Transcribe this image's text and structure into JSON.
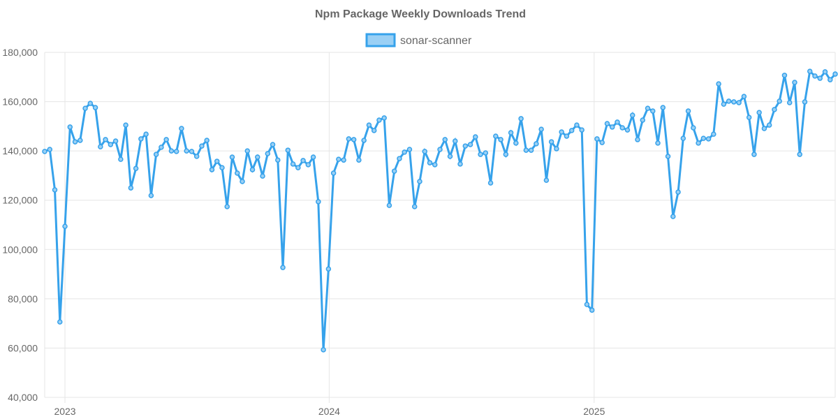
{
  "chart_data": {
    "type": "line",
    "title": "Npm Package Weekly Downloads Trend",
    "xlabel": "",
    "ylabel": "",
    "ylim": [
      40000,
      180000
    ],
    "yticks": [
      "40,000",
      "60,000",
      "80,000",
      "100,000",
      "120,000",
      "140,000",
      "160,000",
      "180,000"
    ],
    "xticks": [
      "2023",
      "2024",
      "2025"
    ],
    "grid": true,
    "legend_position": "top",
    "colors": {
      "line": "#36a2eb",
      "fill": "#9ad0f5"
    },
    "series": [
      {
        "name": "sonar-scanner",
        "points": [
          [
            "2022-12-04",
            139800
          ],
          [
            "2022-12-11",
            140600
          ],
          [
            "2022-12-18",
            124200
          ],
          [
            "2022-12-25",
            70600
          ],
          [
            "2023-01-01",
            109400
          ],
          [
            "2023-01-08",
            149700
          ],
          [
            "2023-01-15",
            143700
          ],
          [
            "2023-01-22",
            144300
          ],
          [
            "2023-01-29",
            157300
          ],
          [
            "2023-02-05",
            159300
          ],
          [
            "2023-02-12",
            157600
          ],
          [
            "2023-02-19",
            141700
          ],
          [
            "2023-02-26",
            144600
          ],
          [
            "2023-03-05",
            142600
          ],
          [
            "2023-03-12",
            144000
          ],
          [
            "2023-03-19",
            136600
          ],
          [
            "2023-03-26",
            150500
          ],
          [
            "2023-04-02",
            125000
          ],
          [
            "2023-04-09",
            132900
          ],
          [
            "2023-04-16",
            144900
          ],
          [
            "2023-04-23",
            146800
          ],
          [
            "2023-04-30",
            121900
          ],
          [
            "2023-05-07",
            138600
          ],
          [
            "2023-05-14",
            141500
          ],
          [
            "2023-05-21",
            144600
          ],
          [
            "2023-05-28",
            140000
          ],
          [
            "2023-06-04",
            139800
          ],
          [
            "2023-06-11",
            149100
          ],
          [
            "2023-06-18",
            140000
          ],
          [
            "2023-06-25",
            139800
          ],
          [
            "2023-07-02",
            137800
          ],
          [
            "2023-07-09",
            142000
          ],
          [
            "2023-07-16",
            144300
          ],
          [
            "2023-07-23",
            132400
          ],
          [
            "2023-07-30",
            135800
          ],
          [
            "2023-08-06",
            133200
          ],
          [
            "2023-08-13",
            117400
          ],
          [
            "2023-08-20",
            137500
          ],
          [
            "2023-08-27",
            131000
          ],
          [
            "2023-09-03",
            127600
          ],
          [
            "2023-09-10",
            140000
          ],
          [
            "2023-09-17",
            132400
          ],
          [
            "2023-09-24",
            137500
          ],
          [
            "2023-10-01",
            129800
          ],
          [
            "2023-10-08",
            138900
          ],
          [
            "2023-10-15",
            142600
          ],
          [
            "2023-10-22",
            136300
          ],
          [
            "2023-10-29",
            92700
          ],
          [
            "2023-11-05",
            140300
          ],
          [
            "2023-11-12",
            134700
          ],
          [
            "2023-11-19",
            133200
          ],
          [
            "2023-11-26",
            136100
          ],
          [
            "2023-12-03",
            134400
          ],
          [
            "2023-12-10",
            137500
          ],
          [
            "2023-12-17",
            119400
          ],
          [
            "2023-12-24",
            59300
          ],
          [
            "2023-12-31",
            92100
          ],
          [
            "2024-01-07",
            131000
          ],
          [
            "2024-01-14",
            136600
          ],
          [
            "2024-01-21",
            136300
          ],
          [
            "2024-01-28",
            144900
          ],
          [
            "2024-02-04",
            144600
          ],
          [
            "2024-02-11",
            136300
          ],
          [
            "2024-02-18",
            144300
          ],
          [
            "2024-02-25",
            150500
          ],
          [
            "2024-03-03",
            148300
          ],
          [
            "2024-03-10",
            152500
          ],
          [
            "2024-03-17",
            153400
          ],
          [
            "2024-03-24",
            117900
          ],
          [
            "2024-03-31",
            131800
          ],
          [
            "2024-04-07",
            136900
          ],
          [
            "2024-04-14",
            139500
          ],
          [
            "2024-04-21",
            140600
          ],
          [
            "2024-04-28",
            117400
          ],
          [
            "2024-05-05",
            127600
          ],
          [
            "2024-05-12",
            139800
          ],
          [
            "2024-05-19",
            135200
          ],
          [
            "2024-05-26",
            134400
          ],
          [
            "2024-06-02",
            140600
          ],
          [
            "2024-06-09",
            144600
          ],
          [
            "2024-06-16",
            137800
          ],
          [
            "2024-06-23",
            144000
          ],
          [
            "2024-06-30",
            134700
          ],
          [
            "2024-07-07",
            142000
          ],
          [
            "2024-07-14",
            142600
          ],
          [
            "2024-07-21",
            145700
          ],
          [
            "2024-07-28",
            138600
          ],
          [
            "2024-08-04",
            139200
          ],
          [
            "2024-08-11",
            127000
          ],
          [
            "2024-08-18",
            146000
          ],
          [
            "2024-08-25",
            144600
          ],
          [
            "2024-09-01",
            138600
          ],
          [
            "2024-09-08",
            147400
          ],
          [
            "2024-09-15",
            143200
          ],
          [
            "2024-09-22",
            153100
          ],
          [
            "2024-09-29",
            140300
          ],
          [
            "2024-10-06",
            140300
          ],
          [
            "2024-10-13",
            142900
          ],
          [
            "2024-10-20",
            148800
          ],
          [
            "2024-10-27",
            128100
          ],
          [
            "2024-11-03",
            143700
          ],
          [
            "2024-11-10",
            140900
          ],
          [
            "2024-11-17",
            147700
          ],
          [
            "2024-11-24",
            146000
          ],
          [
            "2024-12-01",
            148300
          ],
          [
            "2024-12-08",
            150500
          ],
          [
            "2024-12-15",
            148500
          ],
          [
            "2024-12-22",
            77700
          ],
          [
            "2024-12-29",
            75400
          ],
          [
            "2025-01-05",
            144900
          ],
          [
            "2025-01-12",
            143400
          ],
          [
            "2025-01-19",
            151100
          ],
          [
            "2025-01-26",
            149700
          ],
          [
            "2025-02-02",
            151700
          ],
          [
            "2025-02-09",
            149400
          ],
          [
            "2025-02-16",
            148500
          ],
          [
            "2025-02-23",
            154500
          ],
          [
            "2025-03-02",
            144600
          ],
          [
            "2025-03-09",
            152500
          ],
          [
            "2025-03-16",
            157300
          ],
          [
            "2025-03-23",
            156200
          ],
          [
            "2025-03-30",
            143200
          ],
          [
            "2025-04-06",
            157600
          ],
          [
            "2025-04-13",
            137800
          ],
          [
            "2025-04-20",
            113400
          ],
          [
            "2025-04-27",
            123300
          ],
          [
            "2025-05-04",
            145100
          ],
          [
            "2025-05-11",
            156200
          ],
          [
            "2025-05-18",
            149400
          ],
          [
            "2025-05-25",
            143200
          ],
          [
            "2025-06-01",
            145100
          ],
          [
            "2025-06-08",
            144900
          ],
          [
            "2025-06-15",
            146800
          ],
          [
            "2025-06-22",
            167200
          ],
          [
            "2025-06-29",
            159000
          ],
          [
            "2025-07-06",
            160200
          ],
          [
            "2025-07-13",
            159900
          ],
          [
            "2025-07-20",
            159600
          ],
          [
            "2025-07-27",
            162100
          ],
          [
            "2025-08-03",
            153600
          ],
          [
            "2025-08-10",
            138600
          ],
          [
            "2025-08-17",
            155600
          ],
          [
            "2025-08-24",
            149100
          ],
          [
            "2025-08-31",
            150500
          ],
          [
            "2025-09-07",
            156800
          ],
          [
            "2025-09-14",
            160200
          ],
          [
            "2025-09-21",
            170700
          ],
          [
            "2025-09-28",
            159600
          ],
          [
            "2025-10-05",
            167800
          ],
          [
            "2025-10-12",
            138600
          ],
          [
            "2025-10-19",
            159900
          ],
          [
            "2025-10-26",
            172300
          ],
          [
            "2025-11-02",
            170400
          ],
          [
            "2025-11-09",
            169500
          ],
          [
            "2025-11-16",
            172100
          ],
          [
            "2025-11-23",
            168900
          ],
          [
            "2025-11-30",
            171200
          ]
        ]
      }
    ]
  }
}
